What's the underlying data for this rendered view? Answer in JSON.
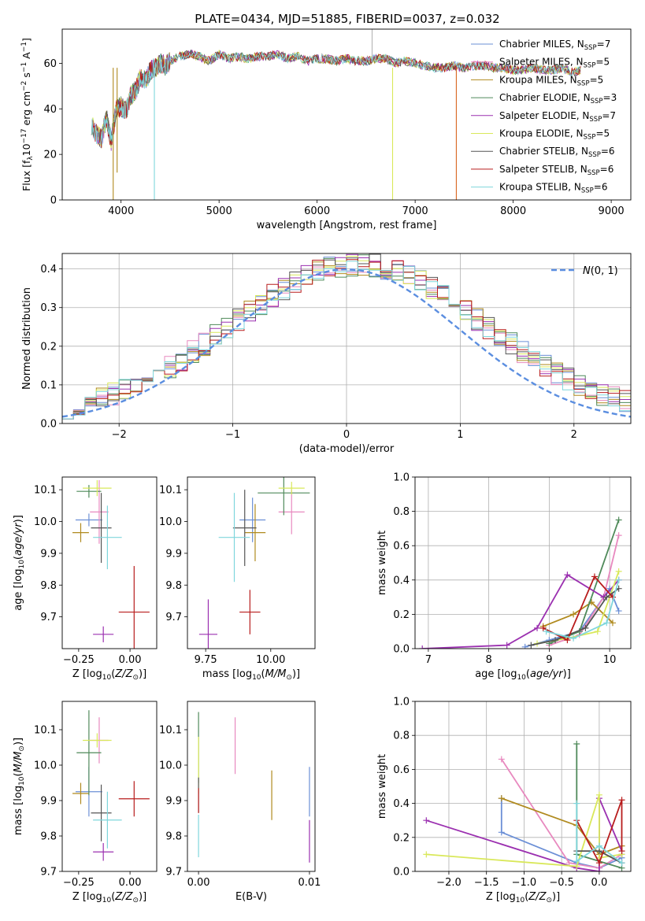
{
  "figure": {
    "title": "PLATE=0434, MJD=51885, FIBERID=0037, z=0.032",
    "models": [
      {
        "name": "Chabrier MILES",
        "pre": "Chabrier MILES, N",
        "sub": "SSP",
        "post": "=7",
        "color": "#6b8fd6"
      },
      {
        "name": "Salpeter MILES",
        "pre": "Salpeter MILES, N",
        "sub": "SSP",
        "post": "=5",
        "color": "#e889bf"
      },
      {
        "name": "Kroupa MILES",
        "pre": "Kroupa MILES, N",
        "sub": "SSP",
        "post": "=5",
        "color": "#b08a1e"
      },
      {
        "name": "Chabrier ELODIE",
        "pre": "Chabrier ELODIE, N",
        "sub": "SSP",
        "post": "=3",
        "color": "#4f8a5a"
      },
      {
        "name": "Salpeter ELODIE",
        "pre": "Salpeter ELODIE, N",
        "sub": "SSP",
        "post": "=7",
        "color": "#9b30b0"
      },
      {
        "name": "Kroupa ELODIE",
        "pre": "Kroupa ELODIE, N",
        "sub": "SSP",
        "post": "=5",
        "color": "#d9e85a"
      },
      {
        "name": "Chabrier STELIB",
        "pre": "Chabrier STELIB, N",
        "sub": "SSP",
        "post": "=6",
        "color": "#555555"
      },
      {
        "name": "Salpeter STELIB",
        "pre": "Salpeter STELIB, N",
        "sub": "SSP",
        "post": "=6",
        "color": "#b81d1d"
      },
      {
        "name": "Kroupa STELIB",
        "pre": "Kroupa STELIB, N",
        "sub": "SSP",
        "post": "=6",
        "color": "#7fd6dc"
      }
    ]
  },
  "chart_data": [
    {
      "id": "spectrum",
      "type": "line",
      "xlabel": "wavelength [Angstrom, rest frame]",
      "ylabel": "Flux [f_λ10^-17 erg cm^-2 s^-1 A^-1]",
      "xlim": [
        3400,
        9200
      ],
      "ylim": [
        0,
        75
      ],
      "xticks": [
        4000,
        5000,
        6000,
        7000,
        8000,
        9000
      ],
      "yticks": [
        0,
        20,
        40,
        60
      ],
      "legend": "upper right",
      "x": [
        3700,
        3750,
        3800,
        3850,
        3900,
        3950,
        4000,
        4050,
        4100,
        4150,
        4200,
        4250,
        4300,
        4350,
        4400,
        4450,
        4500,
        4600,
        4700,
        4800,
        4900,
        5000,
        5100,
        5200,
        5300,
        5400,
        5500,
        5600,
        5700,
        5800,
        5900,
        6000,
        6100,
        6200,
        6300,
        6400,
        6500,
        6600,
        6700,
        6800,
        6900,
        7000,
        7100,
        7200,
        7300,
        7400,
        7500,
        7600,
        7700,
        7800,
        7900,
        8000,
        8100,
        8200,
        8300,
        8400,
        8500,
        8600,
        8700
      ],
      "y": [
        33,
        29,
        27,
        36,
        26,
        40,
        41,
        39,
        46,
        48,
        54,
        52,
        57,
        58,
        60,
        59,
        61,
        63,
        64,
        63,
        61,
        64,
        62,
        63,
        62,
        63,
        63,
        64,
        62,
        63,
        61,
        62,
        62,
        61,
        62,
        61,
        61,
        62,
        62,
        60,
        61,
        60,
        59,
        58,
        58,
        59,
        58,
        59,
        59,
        58,
        58,
        57,
        57,
        58,
        57,
        57,
        58,
        56,
        57
      ]
    },
    {
      "id": "residuals",
      "type": "line",
      "xlabel": "(data-model)/error",
      "ylabel": "Normed distribution",
      "xlim": [
        -2.5,
        2.5
      ],
      "ylim": [
        0,
        0.44
      ],
      "xticks": [
        -2,
        -1,
        0,
        1,
        2
      ],
      "yticks": [
        0.0,
        0.1,
        0.2,
        0.3,
        0.4
      ],
      "legend": "upper right",
      "gaussian": {
        "name": "N(0,1)",
        "mean": 0,
        "sd": 1
      },
      "hist_bin_width": 0.1
    },
    {
      "id": "age_vs_Z",
      "type": "scatter",
      "xlabel": "Z [log10(Z/Z☉)]",
      "ylabel": "age  [log10(age/yr)]",
      "xlim": [
        -0.33,
        0.13
      ],
      "ylim": [
        9.6,
        10.14
      ],
      "xticks": [
        -0.25,
        0.0
      ],
      "xticklabels": [
        "−0.25",
        "0.00"
      ],
      "yticks": [
        9.7,
        9.8,
        9.9,
        10.0,
        10.1
      ],
      "points": [
        {
          "x": -0.2,
          "y": 10.005,
          "ex": 0.065,
          "ey": 0.02
        },
        {
          "x": -0.15,
          "y": 10.03,
          "ex": 0.045,
          "ey": 0.1
        },
        {
          "x": -0.24,
          "y": 9.965,
          "ex": 0.04,
          "ey": 0.03
        },
        {
          "x": -0.2,
          "y": 10.095,
          "ex": 0.06,
          "ey": 0.02
        },
        {
          "x": -0.13,
          "y": 9.645,
          "ex": 0.05,
          "ey": 0.025
        },
        {
          "x": -0.16,
          "y": 10.105,
          "ex": 0.07,
          "ey": 0.025
        },
        {
          "x": -0.14,
          "y": 9.98,
          "ex": 0.05,
          "ey": 0.11
        },
        {
          "x": 0.02,
          "y": 9.715,
          "ex": 0.075,
          "ey": 0.145
        },
        {
          "x": -0.11,
          "y": 9.95,
          "ex": 0.07,
          "ey": 0.1
        }
      ]
    },
    {
      "id": "age_vs_mass",
      "type": "scatter",
      "xlabel": "mass [log10(M/M☉)]",
      "ylabel": "",
      "xlim": [
        9.68,
        10.17
      ],
      "ylim": [
        9.6,
        10.14
      ],
      "xticks": [
        9.75,
        10.0
      ],
      "xticklabels": [
        "9.75",
        "10.00"
      ],
      "yticks": [
        9.7,
        9.8,
        9.9,
        10.0,
        10.1
      ],
      "points": [
        {
          "x": 9.93,
          "y": 10.005,
          "ex": 0.05,
          "ey": 0.07
        },
        {
          "x": 10.08,
          "y": 10.03,
          "ex": 0.05,
          "ey": 0.07
        },
        {
          "x": 9.94,
          "y": 9.965,
          "ex": 0.04,
          "ey": 0.09
        },
        {
          "x": 10.05,
          "y": 10.09,
          "ex": 0.1,
          "ey": 0.07
        },
        {
          "x": 9.76,
          "y": 9.645,
          "ex": 0.035,
          "ey": 0.11
        },
        {
          "x": 10.08,
          "y": 10.105,
          "ex": 0.05,
          "ey": 0.02
        },
        {
          "x": 9.9,
          "y": 9.98,
          "ex": 0.045,
          "ey": 0.12
        },
        {
          "x": 9.92,
          "y": 9.715,
          "ex": 0.04,
          "ey": 0.07
        },
        {
          "x": 9.86,
          "y": 9.95,
          "ex": 0.06,
          "ey": 0.14
        }
      ]
    },
    {
      "id": "weight_vs_age",
      "type": "line",
      "xlabel": "age  [log10(age/yr)]",
      "ylabel": "mass weight",
      "xlim": [
        6.78,
        10.35
      ],
      "ylim": [
        0,
        1.0
      ],
      "xticks": [
        7,
        8,
        9,
        10
      ],
      "yticks": [
        0.0,
        0.2,
        0.4,
        0.6,
        0.8,
        1.0
      ],
      "series": [
        {
          "name": "Chabrier MILES",
          "x": [
            8.6,
            9.0,
            9.5,
            10.0,
            10.15
          ],
          "y": [
            0.01,
            0.05,
            0.1,
            0.35,
            0.22
          ]
        },
        {
          "name": "Salpeter MILES",
          "x": [
            9.0,
            9.5,
            9.9,
            10.15
          ],
          "y": [
            0.02,
            0.08,
            0.3,
            0.66
          ]
        },
        {
          "name": "Kroupa MILES",
          "x": [
            8.9,
            9.4,
            9.7,
            10.05
          ],
          "y": [
            0.13,
            0.2,
            0.27,
            0.15
          ]
        },
        {
          "name": "Chabrier ELODIE",
          "x": [
            9.0,
            9.5,
            10.15
          ],
          "y": [
            0.03,
            0.1,
            0.75
          ]
        },
        {
          "name": "Salpeter ELODIE",
          "x": [
            6.9,
            8.3,
            8.8,
            9.3,
            9.9,
            10.15
          ],
          "y": [
            0.0,
            0.02,
            0.12,
            0.43,
            0.3,
            0.4
          ]
        },
        {
          "name": "Kroupa ELODIE",
          "x": [
            8.8,
            9.3,
            9.8,
            10.15
          ],
          "y": [
            0.03,
            0.06,
            0.1,
            0.45
          ]
        },
        {
          "name": "Chabrier STELIB",
          "x": [
            8.7,
            9.1,
            9.6,
            9.95,
            10.15
          ],
          "y": [
            0.02,
            0.05,
            0.12,
            0.3,
            0.35
          ]
        },
        {
          "name": "Salpeter STELIB",
          "x": [
            8.9,
            9.3,
            9.75,
            10.05
          ],
          "y": [
            0.12,
            0.05,
            0.42,
            0.3
          ]
        },
        {
          "name": "Kroupa STELIB",
          "x": [
            8.95,
            9.4,
            9.95,
            10.15
          ],
          "y": [
            0.1,
            0.06,
            0.15,
            0.4
          ]
        }
      ]
    },
    {
      "id": "mass_vs_Z",
      "type": "scatter",
      "xlabel": "Z [log10(Z/Z☉)]",
      "ylabel": "mass [log10(M/M☉)]",
      "xlim": [
        -0.33,
        0.13
      ],
      "ylim": [
        9.7,
        10.18
      ],
      "xticks": [
        -0.25,
        0.0
      ],
      "xticklabels": [
        "−0.25",
        "0.00"
      ],
      "yticks": [
        9.7,
        9.8,
        9.9,
        10.0,
        10.1
      ],
      "points": [
        {
          "x": -0.2,
          "y": 9.925,
          "ex": 0.065,
          "ey": 0.07
        },
        {
          "x": -0.15,
          "y": 10.07,
          "ex": 0.045,
          "ey": 0.065
        },
        {
          "x": -0.24,
          "y": 9.92,
          "ex": 0.04,
          "ey": 0.03
        },
        {
          "x": -0.2,
          "y": 10.035,
          "ex": 0.06,
          "ey": 0.12
        },
        {
          "x": -0.13,
          "y": 9.755,
          "ex": 0.05,
          "ey": 0.025
        },
        {
          "x": -0.16,
          "y": 10.07,
          "ex": 0.07,
          "ey": 0.02
        },
        {
          "x": -0.14,
          "y": 9.865,
          "ex": 0.05,
          "ey": 0.08
        },
        {
          "x": 0.02,
          "y": 9.905,
          "ex": 0.075,
          "ey": 0.05
        },
        {
          "x": -0.11,
          "y": 9.845,
          "ex": 0.07,
          "ey": 0.08
        }
      ]
    },
    {
      "id": "mass_vs_EBV",
      "type": "scatter",
      "xlabel": "E(B-V)",
      "ylabel": "",
      "xlim": [
        -0.001,
        0.0105
      ],
      "ylim": [
        9.7,
        10.18
      ],
      "xticks": [
        0.0,
        0.01
      ],
      "xticklabels": [
        "0.00",
        "0.01"
      ],
      "yticks": [
        9.7,
        9.8,
        9.9,
        10.0,
        10.1
      ],
      "points": [
        {
          "x": 0.01,
          "y": 9.925,
          "ex": 0,
          "ey": 0.07
        },
        {
          "x": 0.0033,
          "y": 10.055,
          "ex": 0,
          "ey": 0.08
        },
        {
          "x": 0.0066,
          "y": 9.915,
          "ex": 0,
          "ey": 0.07
        },
        {
          "x": 0.0,
          "y": 10.05,
          "ex": 0,
          "ey": 0.1
        },
        {
          "x": 0.01,
          "y": 9.785,
          "ex": 0,
          "ey": 0.06
        },
        {
          "x": 0.0,
          "y": 10.0,
          "ex": 0,
          "ey": 0.08
        },
        {
          "x": 0.0,
          "y": 9.915,
          "ex": 0,
          "ey": 0.05
        },
        {
          "x": 0.0,
          "y": 9.9,
          "ex": 0,
          "ey": 0.035
        },
        {
          "x": 0.0,
          "y": 9.8,
          "ex": 0,
          "ey": 0.06
        }
      ]
    },
    {
      "id": "weight_vs_Z",
      "type": "line",
      "xlabel": "Z [log10(Z/Z☉)]",
      "ylabel": "mass weight",
      "xlim": [
        -2.45,
        0.42
      ],
      "ylim": [
        0,
        1.0
      ],
      "xticks": [
        -2.0,
        -1.5,
        -1.0,
        -0.5,
        0.0
      ],
      "xticklabels": [
        "−2.0",
        "−1.5",
        "−1.0",
        "−0.5",
        "0.0"
      ],
      "yticks": [
        0.0,
        0.2,
        0.4,
        0.6,
        0.8,
        1.0
      ],
      "series": [
        {
          "name": "Chabrier MILES",
          "x": [
            -1.3,
            -1.3,
            -0.3,
            0.0,
            0.3,
            0.3
          ],
          "y": [
            0.43,
            0.23,
            0.05,
            0.02,
            0.08,
            0.1
          ]
        },
        {
          "name": "Salpeter MILES",
          "x": [
            -1.3,
            -0.4,
            0.0,
            0.3
          ],
          "y": [
            0.66,
            0.05,
            0.02,
            0.1
          ]
        },
        {
          "name": "Kroupa MILES",
          "x": [
            -1.3,
            -0.3,
            0.0,
            0.3
          ],
          "y": [
            0.43,
            0.27,
            0.1,
            0.15
          ]
        },
        {
          "name": "Chabrier ELODIE",
          "x": [
            -0.3,
            -0.3,
            0.3
          ],
          "y": [
            0.75,
            0.1,
            0.02
          ]
        },
        {
          "name": "Salpeter ELODIE",
          "x": [
            -2.3,
            -0.3,
            0.0,
            0.0,
            0.3
          ],
          "y": [
            0.3,
            0.02,
            0.0,
            0.43,
            0.12
          ]
        },
        {
          "name": "Kroupa ELODIE",
          "x": [
            -2.3,
            -0.3,
            0.0,
            0.0,
            0.3
          ],
          "y": [
            0.1,
            0.03,
            0.45,
            0.08,
            0.1
          ]
        },
        {
          "name": "Chabrier STELIB",
          "x": [
            -0.3,
            0.0,
            0.3
          ],
          "y": [
            0.12,
            0.12,
            0.05
          ]
        },
        {
          "name": "Salpeter STELIB",
          "x": [
            -0.3,
            0.0,
            0.3,
            0.3
          ],
          "y": [
            0.3,
            0.05,
            0.42,
            0.12
          ]
        },
        {
          "name": "Kroupa STELIB",
          "x": [
            -0.3,
            -0.3,
            0.0,
            0.3
          ],
          "y": [
            0.4,
            0.06,
            0.15,
            0.05
          ]
        }
      ]
    }
  ]
}
